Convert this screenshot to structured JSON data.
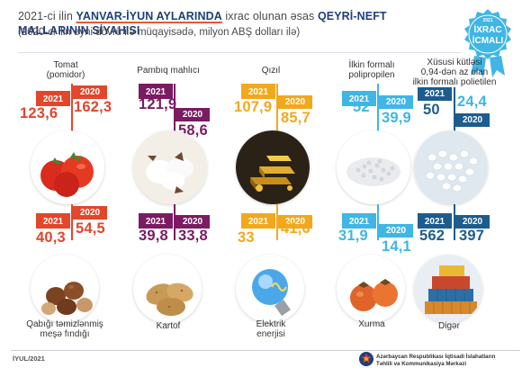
{
  "header": {
    "line1_part1": "2021-ci ilin ",
    "line1_accent1": "YANVAR-İYUN AYLARINDA",
    "line1_part2": " ixrac olunan əsas ",
    "line1_accent2": "QEYRİ-NEFT MALLARININ SİYAHISI",
    "subtitle": "(2020-ci ilin eyni dövrü ilə müqayisədə, milyon ABŞ dolları ilə)"
  },
  "badge": {
    "year": "2021",
    "line1": "İXRAC",
    "line2": "İCMALI"
  },
  "colors": {
    "red": "#e2462b",
    "purple": "#7b1b62",
    "gold": "#f2a81d",
    "lightblue": "#3fb6e5",
    "navy": "#1c5c8f",
    "title_navy": "#1f3f7a"
  },
  "products": [
    {
      "label": "Tomat\n(pomidor)",
      "y2021": "123,6",
      "y2020": "162,3",
      "y2021_label": "2021",
      "y2020_label": "2020",
      "icon": "tomato-photo"
    },
    {
      "label": "Pambıq mahlıcı",
      "y2021": "121,9",
      "y2020": "58,6",
      "y2021_label": "2021",
      "y2020_label": "2020",
      "icon": "cotton-photo"
    },
    {
      "label": "Qızıl",
      "y2021": "107,9",
      "y2020": "85,7",
      "y2021_label": "2021",
      "y2020_label": "2020",
      "icon": "gold-photo"
    },
    {
      "label": "İlkin formalı\npolipropilen",
      "y2021": "52",
      "y2020": "39,9",
      "y2021_label": "2021",
      "y2020_label": "2020",
      "icon": "polypropylene-photo"
    },
    {
      "label": "Xüsusi kütləsi\n0,94-dən az olan\nilkin formalı polietilen",
      "y2021": "50",
      "y2020": "24,4",
      "y2021_label": "2021",
      "y2020_label": "2020",
      "icon": "polyethylene-photo"
    },
    {
      "label": "Qabığı təmizlənmiş\nmeşə fındığı",
      "y2021": "40,3",
      "y2020": "54,5",
      "y2021_label": "2021",
      "y2020_label": "2020",
      "icon": "hazelnut-photo"
    },
    {
      "label": "Kartof",
      "y2021": "39,8",
      "y2020": "33,8",
      "y2021_label": "2021",
      "y2020_label": "2020",
      "icon": "potato-photo"
    },
    {
      "label": "Elektrik\nenerjisi",
      "y2021": "33",
      "y2020": "41,6",
      "y2021_label": "2021",
      "y2020_label": "2020",
      "icon": "lightbulb-photo"
    },
    {
      "label": "Xurma",
      "y2021": "31,9",
      "y2020": "14,1",
      "y2021_label": "2021",
      "y2020_label": "2020",
      "icon": "persimmon-photo"
    },
    {
      "label": "Digər",
      "y2021": "562",
      "y2020": "397",
      "y2021_label": "2021",
      "y2020_label": "2020",
      "icon": "containers-photo"
    }
  ],
  "footer": {
    "date": "İYUL/2021",
    "org_line1": "Azərbaycan Respublikası İqtisadi İslahatların",
    "org_line2": "Təhlili və Kommunikasiya Mərkəzi"
  }
}
